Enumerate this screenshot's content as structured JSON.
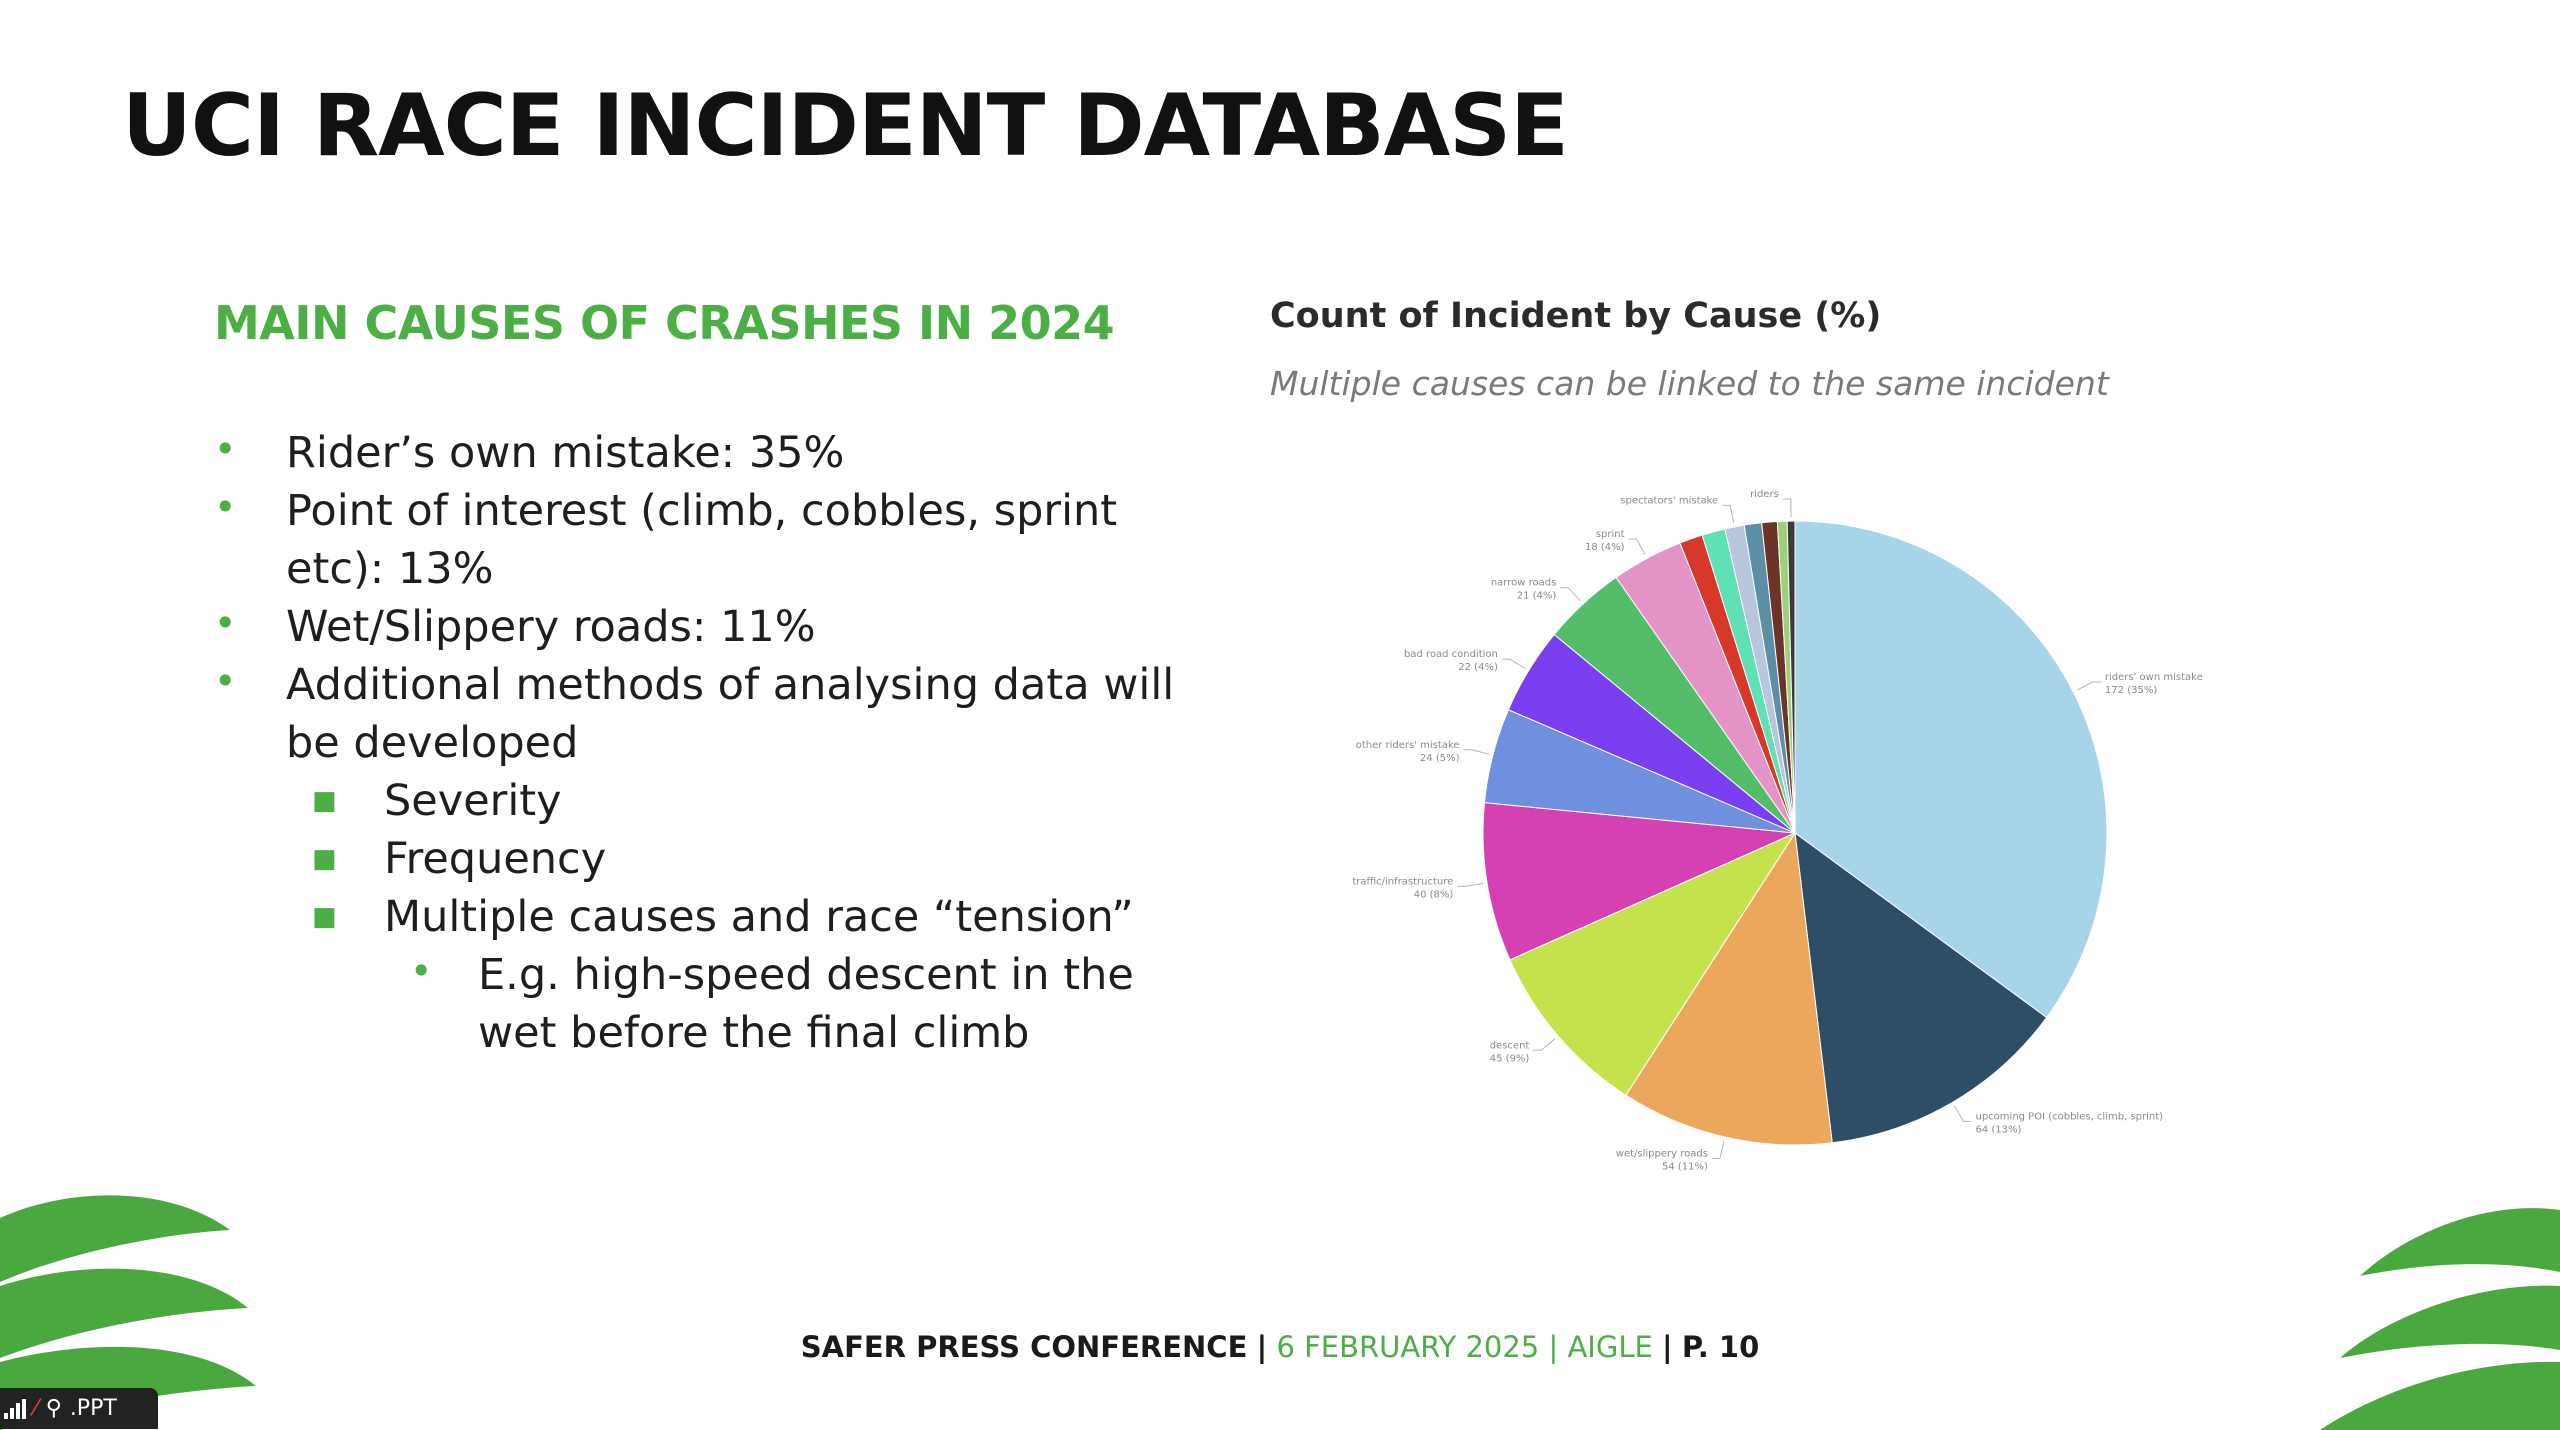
{
  "slide": {
    "title": "UCI RACE INCIDENT DATABASE",
    "section_heading": "MAIN CAUSES OF CRASHES IN 2024"
  },
  "bullets": [
    {
      "level": 1,
      "text": "Rider’s own mistake: 35%"
    },
    {
      "level": 1,
      "text": "Point of interest (climb, cobbles, sprint etc): 13%"
    },
    {
      "level": 1,
      "text": "Wet/Slippery roads: 11%"
    },
    {
      "level": 1,
      "text": "Additional methods of analysing data will be developed"
    },
    {
      "level": 2,
      "text": "Severity"
    },
    {
      "level": 2,
      "text": "Frequency"
    },
    {
      "level": 2,
      "text": "Multiple causes and race “tension”"
    },
    {
      "level": 3,
      "text": "E.g. high-speed descent in the wet before the final climb"
    }
  ],
  "bullet_marks": {
    "1": "•",
    "2": "■",
    "3": "•"
  },
  "chart_data": {
    "type": "pie",
    "title": "Count of Incident by Cause (%)",
    "subtitle": "Multiple causes can be linked to the same incident",
    "slices": [
      {
        "label": "riders' own mistake",
        "value_label": "172 (35%)",
        "value": 35.0,
        "color": "#a8d4e9"
      },
      {
        "label": "upcoming POI (cobbles, climb, sprint)",
        "value_label": "64 (13%)",
        "value": 13.0,
        "color": "#2e4d67"
      },
      {
        "label": "wet/slippery roads",
        "value_label": "54 (11%)",
        "value": 11.0,
        "color": "#eba85c"
      },
      {
        "label": "descent",
        "value_label": "45 (9%)",
        "value": 9.2,
        "color": "#c3e24b"
      },
      {
        "label": "traffic/infrastructure",
        "value_label": "40 (8%)",
        "value": 8.2,
        "color": "#d540b3"
      },
      {
        "label": "other riders' mistake",
        "value_label": "24 (5%)",
        "value": 4.9,
        "color": "#6f8fdf"
      },
      {
        "label": "bad road condition",
        "value_label": "22 (4%)",
        "value": 4.5,
        "color": "#7a3ff0"
      },
      {
        "label": "narrow roads",
        "value_label": "21 (4%)",
        "value": 4.3,
        "color": "#55bd69"
      },
      {
        "label": "sprint",
        "value_label": "18 (4%)",
        "value": 3.7,
        "color": "#e393c6"
      },
      {
        "label": "",
        "value_label": "",
        "value": 1.2,
        "color": "#d6382a"
      },
      {
        "label": "",
        "value_label": "",
        "value": 1.2,
        "color": "#5fe0b5"
      },
      {
        "label": "spectators' mistake",
        "value_label": "",
        "value": 1.0,
        "color": "#b7c6dc"
      },
      {
        "label": "",
        "value_label": "",
        "value": 0.9,
        "color": "#5c8fa6"
      },
      {
        "label": "",
        "value_label": "",
        "value": 0.8,
        "color": "#6b3426"
      },
      {
        "label": "",
        "value_label": "",
        "value": 0.5,
        "color": "#a0cf7a"
      },
      {
        "label": "riders",
        "value_label": "",
        "value": 0.4,
        "color": "#3a3a3a"
      }
    ]
  },
  "footer": {
    "event": "SAFER PRESS CONFERENCE",
    "date": "6 FEBRUARY 2025",
    "place": "AIGLE",
    "page": "P. 10",
    "separator": "|"
  },
  "status_chip": {
    "label": ".PPT",
    "icons": [
      "signal-icon",
      "no-mic-icon",
      "pin-icon"
    ]
  },
  "colors": {
    "accent_green": "#4caf46",
    "title": "#111111"
  }
}
